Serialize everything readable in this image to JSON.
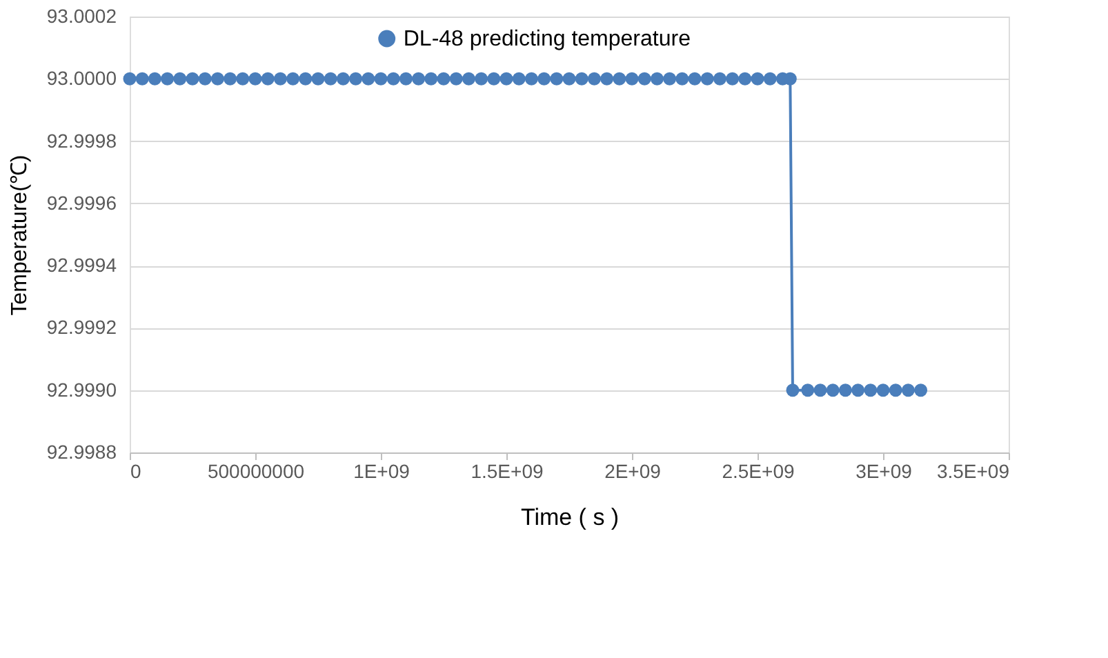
{
  "chart_data": {
    "type": "line",
    "xlabel": "Time ( s )",
    "ylabel": "Temperature(℃)",
    "series": [
      {
        "name": "DL-48 predicting temperature",
        "color": "#4a7ebb",
        "x": [
          0,
          50000000,
          100000000,
          150000000,
          200000000,
          250000000,
          300000000,
          350000000,
          400000000,
          450000000,
          500000000,
          550000000,
          600000000,
          650000000,
          700000000,
          750000000,
          800000000,
          850000000,
          900000000,
          950000000,
          1000000000,
          1050000000,
          1100000000,
          1150000000,
          1200000000,
          1250000000,
          1300000000,
          1350000000,
          1400000000,
          1450000000,
          1500000000,
          1550000000,
          1600000000,
          1650000000,
          1700000000,
          1750000000,
          1800000000,
          1850000000,
          1900000000,
          1950000000,
          2000000000,
          2050000000,
          2100000000,
          2150000000,
          2200000000,
          2250000000,
          2300000000,
          2350000000,
          2400000000,
          2450000000,
          2500000000,
          2550000000,
          2600000000,
          2630000000,
          2640000000,
          2700000000,
          2750000000,
          2800000000,
          2850000000,
          2900000000,
          2950000000,
          3000000000,
          3050000000,
          3100000000,
          3150000000
        ],
        "values": [
          93.0,
          93.0,
          93.0,
          93.0,
          93.0,
          93.0,
          93.0,
          93.0,
          93.0,
          93.0,
          93.0,
          93.0,
          93.0,
          93.0,
          93.0,
          93.0,
          93.0,
          93.0,
          93.0,
          93.0,
          93.0,
          93.0,
          93.0,
          93.0,
          93.0,
          93.0,
          93.0,
          93.0,
          93.0,
          93.0,
          93.0,
          93.0,
          93.0,
          93.0,
          93.0,
          93.0,
          93.0,
          93.0,
          93.0,
          93.0,
          93.0,
          93.0,
          93.0,
          93.0,
          93.0,
          93.0,
          93.0,
          93.0,
          93.0,
          93.0,
          93.0,
          93.0,
          93.0,
          93.0,
          92.999,
          92.999,
          92.999,
          92.999,
          92.999,
          92.999,
          92.999,
          92.999,
          92.999,
          92.999,
          92.999
        ]
      }
    ],
    "xlim": [
      0,
      3500000000
    ],
    "xticks": [
      0,
      500000000,
      {
        "value": 1000000000,
        "label": "1E+09"
      },
      {
        "value": 1500000000,
        "label": "1.5E+09"
      },
      {
        "value": 2000000000,
        "label": "2E+09"
      },
      {
        "value": 2500000000,
        "label": "2.5E+09"
      },
      {
        "value": 3000000000,
        "label": "3E+09"
      },
      {
        "value": 3500000000,
        "label": "3.5E+09"
      }
    ],
    "ylim": [
      92.9988,
      93.0002
    ],
    "yticks": [
      {
        "value": 92.9988,
        "label": "92.9988"
      },
      {
        "value": 92.999,
        "label": "92.9990"
      },
      {
        "value": 92.9992,
        "label": "92.9992"
      },
      {
        "value": 92.9994,
        "label": "92.9994"
      },
      {
        "value": 92.9996,
        "label": "92.9996"
      },
      {
        "value": 92.9998,
        "label": "92.9998"
      },
      {
        "value": 93.0,
        "label": "93.0000"
      },
      {
        "value": 93.0002,
        "label": "93.0002"
      }
    ],
    "grid": "y",
    "legend": "top",
    "marker": "circle",
    "line_style": "solid"
  }
}
